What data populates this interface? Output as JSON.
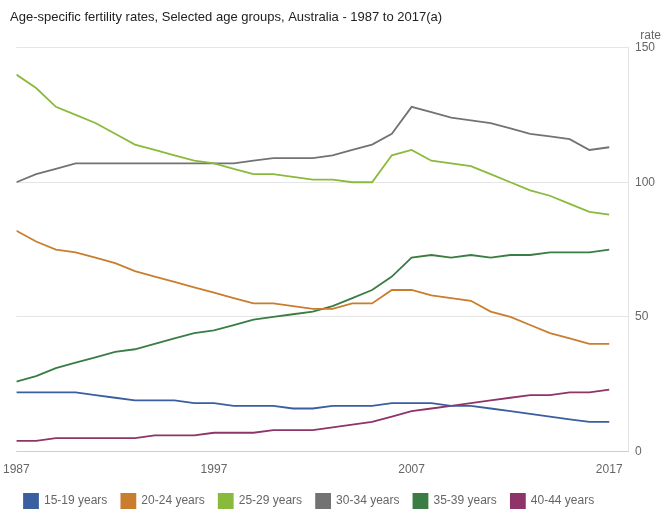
{
  "chart_data": {
    "type": "line",
    "title": "Age-specific fertility rates, Selected age groups, Australia - 1987 to 2017(a)",
    "ylabel": "rate",
    "x": [
      1987,
      1988,
      1989,
      1990,
      1991,
      1992,
      1993,
      1994,
      1995,
      1996,
      1997,
      1998,
      1999,
      2000,
      2001,
      2002,
      2003,
      2004,
      2005,
      2006,
      2007,
      2008,
      2009,
      2010,
      2011,
      2012,
      2013,
      2014,
      2015,
      2016,
      2017
    ],
    "series": [
      {
        "name": "15-19 years",
        "color": "#3a5fa0",
        "values": [
          22,
          22,
          22,
          22,
          21,
          20,
          19,
          19,
          19,
          18,
          18,
          17,
          17,
          17,
          16,
          16,
          17,
          17,
          17,
          18,
          18,
          18,
          17,
          17,
          16,
          15,
          14,
          13,
          12,
          11,
          11
        ]
      },
      {
        "name": "20-24 years",
        "color": "#c87d2f",
        "values": [
          82,
          78,
          75,
          74,
          72,
          70,
          67,
          65,
          63,
          61,
          59,
          57,
          55,
          55,
          54,
          53,
          53,
          55,
          55,
          60,
          60,
          58,
          57,
          56,
          52,
          50,
          47,
          44,
          42,
          40,
          40
        ]
      },
      {
        "name": "25-29 years",
        "color": "#8aba3b",
        "values": [
          140,
          135,
          128,
          125,
          122,
          118,
          114,
          112,
          110,
          108,
          107,
          105,
          103,
          103,
          102,
          101,
          101,
          100,
          100,
          110,
          112,
          108,
          107,
          106,
          103,
          100,
          97,
          95,
          92,
          89,
          88
        ]
      },
      {
        "name": "30-34 years",
        "color": "#737373",
        "values": [
          100,
          103,
          105,
          107,
          107,
          107,
          107,
          107,
          107,
          107,
          107,
          107,
          108,
          109,
          109,
          109,
          110,
          112,
          114,
          118,
          128,
          126,
          124,
          123,
          122,
          120,
          118,
          117,
          116,
          112,
          113
        ]
      },
      {
        "name": "35-39 years",
        "color": "#3a7d44",
        "values": [
          26,
          28,
          31,
          33,
          35,
          37,
          38,
          40,
          42,
          44,
          45,
          47,
          49,
          50,
          51,
          52,
          54,
          57,
          60,
          65,
          72,
          73,
          72,
          73,
          72,
          73,
          73,
          74,
          74,
          74,
          75
        ]
      },
      {
        "name": "40-44 years",
        "color": "#8e3468",
        "values": [
          4,
          4,
          5,
          5,
          5,
          5,
          5,
          6,
          6,
          6,
          7,
          7,
          7,
          8,
          8,
          8,
          9,
          10,
          11,
          13,
          15,
          16,
          17,
          18,
          19,
          20,
          21,
          21,
          22,
          22,
          23
        ]
      }
    ],
    "xlim": [
      1987,
      2018
    ],
    "xticks": [
      1987,
      1997,
      2007,
      2017
    ],
    "ylim": [
      0,
      150
    ],
    "yticks": [
      0,
      50,
      100,
      150
    ],
    "grid": true,
    "legend": "bottom"
  }
}
